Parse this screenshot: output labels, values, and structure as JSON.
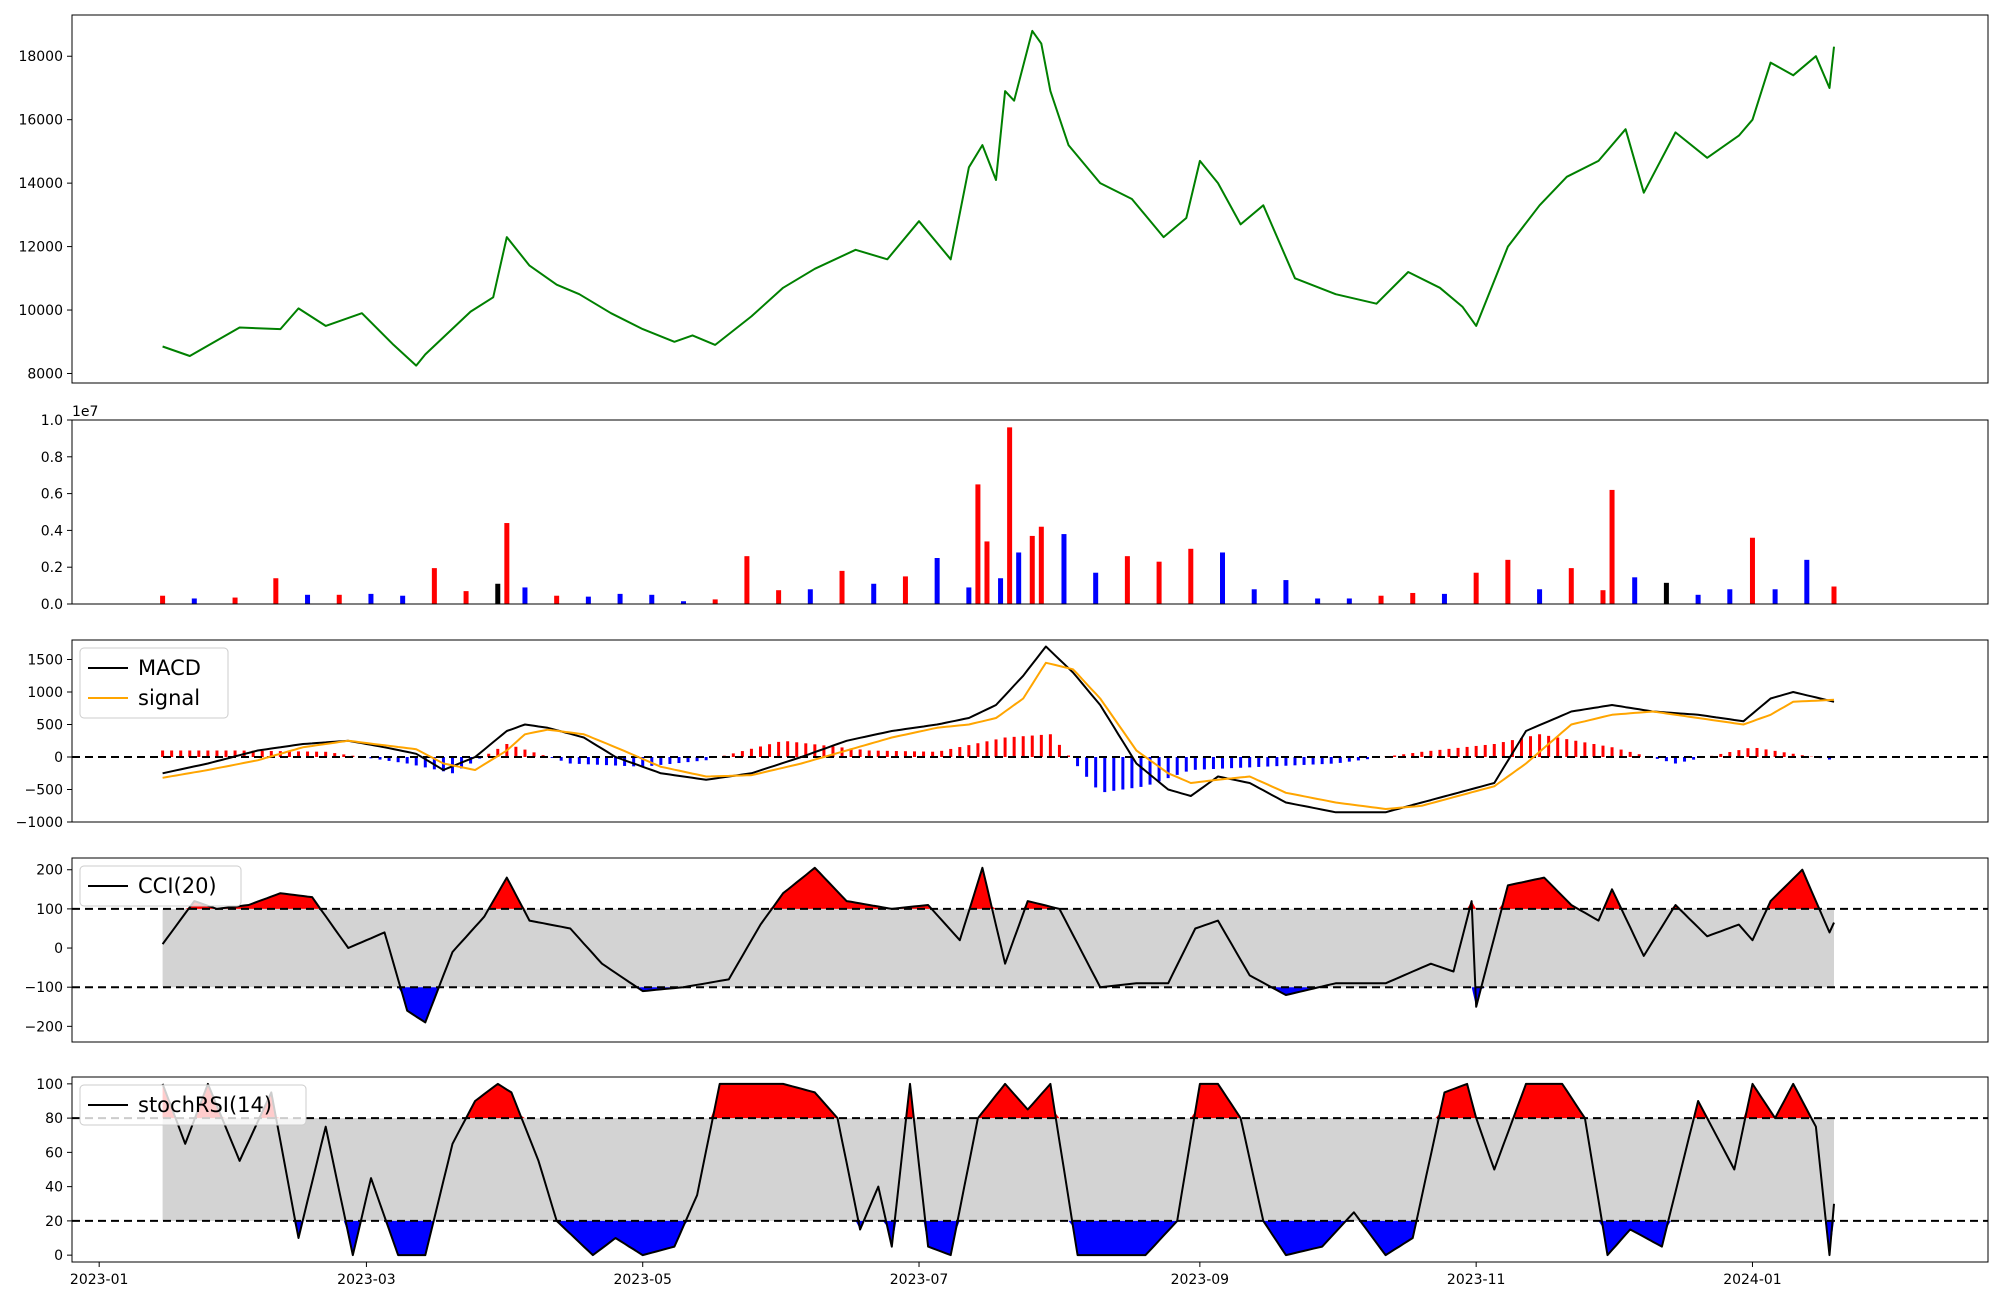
{
  "chart_data": [
    {
      "type": "line",
      "x": [
        "2023-01-15",
        "2023-01-21",
        "2023-02-01",
        "2023-02-10",
        "2023-02-14",
        "2023-02-20",
        "2023-02-28",
        "2023-03-07",
        "2023-03-12",
        "2023-03-14",
        "2023-03-24",
        "2023-03-29",
        "2023-04-01",
        "2023-04-06",
        "2023-04-12",
        "2023-04-17",
        "2023-04-24",
        "2023-05-01",
        "2023-05-08",
        "2023-05-12",
        "2023-05-17",
        "2023-05-25",
        "2023-06-01",
        "2023-06-08",
        "2023-06-17",
        "2023-06-24",
        "2023-07-01",
        "2023-07-08",
        "2023-07-12",
        "2023-07-15",
        "2023-07-18",
        "2023-07-20",
        "2023-07-22",
        "2023-07-26",
        "2023-07-28",
        "2023-07-30",
        "2023-08-03",
        "2023-08-10",
        "2023-08-17",
        "2023-08-24",
        "2023-08-29",
        "2023-09-01",
        "2023-09-05",
        "2023-09-10",
        "2023-09-15",
        "2023-09-22",
        "2023-10-01",
        "2023-10-10",
        "2023-10-17",
        "2023-10-24",
        "2023-10-29",
        "2023-11-01",
        "2023-11-08",
        "2023-11-15",
        "2023-11-21",
        "2023-11-28",
        "2023-12-04",
        "2023-12-08",
        "2023-12-15",
        "2023-12-22",
        "2023-12-29",
        "2024-01-01",
        "2024-01-05",
        "2024-01-10",
        "2024-01-15",
        "2024-01-18",
        "2024-01-19"
      ],
      "series": [
        {
          "values": [
            8850,
            8550,
            9450,
            9400,
            10050,
            9500,
            9900,
            8900,
            8250,
            8600,
            9950,
            10400,
            12300,
            11400,
            10800,
            10500,
            9900,
            9400,
            9000,
            9200,
            8900,
            9800,
            10700,
            11300,
            11900,
            11600,
            12800,
            11600,
            14500,
            15200,
            14100,
            16900,
            16600,
            18800,
            18400,
            16900,
            15200,
            14000,
            13500,
            12300,
            12900,
            14700,
            14000,
            12700,
            13300,
            11000,
            10500,
            10200,
            11200,
            10700,
            10100,
            9500,
            12000,
            13300,
            14200,
            14700,
            15700,
            13700,
            15600,
            14800,
            15500,
            16000,
            17800,
            17400,
            18000,
            17000,
            18300
          ]
        }
      ],
      "ylim": [
        7700,
        19300
      ],
      "yticks": [
        8000,
        10000,
        12000,
        14000,
        16000,
        18000
      ]
    },
    {
      "type": "bar",
      "x": [
        "2023-01-15",
        "2023-01-22",
        "2023-01-31",
        "2023-02-09",
        "2023-02-16",
        "2023-02-23",
        "2023-03-02",
        "2023-03-09",
        "2023-03-16",
        "2023-03-23",
        "2023-03-30",
        "2023-04-01",
        "2023-04-05",
        "2023-04-12",
        "2023-04-19",
        "2023-04-26",
        "2023-05-03",
        "2023-05-10",
        "2023-05-17",
        "2023-05-24",
        "2023-05-31",
        "2023-06-07",
        "2023-06-14",
        "2023-06-21",
        "2023-06-28",
        "2023-07-05",
        "2023-07-12",
        "2023-07-14",
        "2023-07-16",
        "2023-07-19",
        "2023-07-21",
        "2023-07-23",
        "2023-07-26",
        "2023-07-28",
        "2023-08-02",
        "2023-08-09",
        "2023-08-16",
        "2023-08-23",
        "2023-08-30",
        "2023-09-06",
        "2023-09-13",
        "2023-09-20",
        "2023-09-27",
        "2023-10-04",
        "2023-10-11",
        "2023-10-18",
        "2023-10-25",
        "2023-11-01",
        "2023-11-08",
        "2023-11-15",
        "2023-11-22",
        "2023-11-29",
        "2023-12-01",
        "2023-12-06",
        "2023-12-13",
        "2023-12-20",
        "2023-12-27",
        "2024-01-01",
        "2024-01-06",
        "2024-01-13",
        "2024-01-19"
      ],
      "values": [
        450000,
        300000,
        350000,
        1400000,
        500000,
        500000,
        550000,
        450000,
        1950000,
        700000,
        1100000,
        4400000,
        900000,
        450000,
        400000,
        550000,
        500000,
        150000,
        250000,
        2600000,
        750000,
        800000,
        1800000,
        1100000,
        1500000,
        2500000,
        900000,
        6500000,
        3400000,
        1400000,
        9600000,
        2800000,
        3700000,
        4200000,
        3800000,
        1700000,
        2600000,
        2300000,
        3000000,
        2800000,
        800000,
        1300000,
        300000,
        300000,
        450000,
        600000,
        550000,
        1700000,
        2400000,
        800000,
        1950000,
        750000,
        6200000,
        1450000,
        1150000,
        500000,
        800000,
        3600000,
        800000,
        2400000,
        950000
      ],
      "colors": [
        "#ff0000",
        "#0000ff",
        "#ff0000",
        "#ff0000",
        "#0000ff",
        "#ff0000",
        "#0000ff",
        "#0000ff",
        "#ff0000",
        "#ff0000",
        "#000000",
        "#ff0000",
        "#0000ff",
        "#ff0000",
        "#0000ff",
        "#0000ff",
        "#0000ff",
        "#0000ff",
        "#ff0000",
        "#ff0000",
        "#ff0000",
        "#0000ff",
        "#ff0000",
        "#0000ff",
        "#ff0000",
        "#0000ff",
        "#0000ff",
        "#ff0000",
        "#ff0000",
        "#0000ff",
        "#ff0000",
        "#0000ff",
        "#ff0000",
        "#ff0000",
        "#0000ff",
        "#0000ff",
        "#ff0000",
        "#ff0000",
        "#ff0000",
        "#0000ff",
        "#0000ff",
        "#0000ff",
        "#0000ff",
        "#0000ff",
        "#ff0000",
        "#ff0000",
        "#0000ff",
        "#ff0000",
        "#ff0000",
        "#0000ff",
        "#ff0000",
        "#ff0000",
        "#ff0000",
        "#0000ff",
        "#000000",
        "#0000ff",
        "#0000ff",
        "#ff0000",
        "#0000ff",
        "#0000ff",
        "#ff0000"
      ],
      "ylim": [
        0,
        10000000
      ],
      "yticks": [
        0,
        2000000,
        4000000,
        6000000,
        8000000,
        10000000
      ],
      "ytick_labels": [
        "0.0",
        "0.2",
        "0.4",
        "0.6",
        "0.8",
        "1.0"
      ],
      "offset_text": "1e7"
    },
    {
      "type": "line",
      "x": [
        "2023-01-15",
        "2023-01-25",
        "2023-02-05",
        "2023-02-15",
        "2023-02-25",
        "2023-03-05",
        "2023-03-12",
        "2023-03-18",
        "2023-03-25",
        "2023-04-01",
        "2023-04-05",
        "2023-04-10",
        "2023-04-18",
        "2023-04-25",
        "2023-05-05",
        "2023-05-15",
        "2023-05-25",
        "2023-06-05",
        "2023-06-15",
        "2023-06-25",
        "2023-07-05",
        "2023-07-12",
        "2023-07-18",
        "2023-07-24",
        "2023-07-29",
        "2023-08-04",
        "2023-08-10",
        "2023-08-18",
        "2023-08-25",
        "2023-08-30",
        "2023-09-05",
        "2023-09-12",
        "2023-09-20",
        "2023-10-01",
        "2023-10-12",
        "2023-10-20",
        "2023-10-28",
        "2023-11-05",
        "2023-11-12",
        "2023-11-22",
        "2023-12-01",
        "2023-12-10",
        "2023-12-20",
        "2023-12-30",
        "2024-01-05",
        "2024-01-10",
        "2024-01-19"
      ],
      "series": [
        {
          "name": "MACD",
          "values": [
            -250,
            -100,
            100,
            200,
            250,
            150,
            50,
            -200,
            0,
            400,
            500,
            450,
            300,
            0,
            -250,
            -350,
            -250,
            0,
            250,
            400,
            500,
            600,
            800,
            1250,
            1700,
            1300,
            800,
            -100,
            -500,
            -600,
            -300,
            -400,
            -700,
            -850,
            -850,
            -700,
            -550,
            -400,
            400,
            700,
            800,
            700,
            650,
            550,
            900,
            1000,
            850
          ]
        },
        {
          "name": "signal",
          "values": [
            -320,
            -200,
            -50,
            150,
            250,
            180,
            120,
            -100,
            -200,
            100,
            350,
            420,
            350,
            150,
            -150,
            -300,
            -280,
            -100,
            100,
            300,
            450,
            500,
            600,
            900,
            1450,
            1350,
            900,
            100,
            -250,
            -400,
            -350,
            -300,
            -550,
            -700,
            -800,
            -750,
            -600,
            -450,
            -100,
            500,
            650,
            700,
            600,
            500,
            650,
            850,
            880
          ]
        }
      ],
      "histogram": {
        "x": [
          "2023-01-15",
          "2023-02-01",
          "2023-02-20",
          "2023-03-10",
          "2023-03-20",
          "2023-04-01",
          "2023-04-15",
          "2023-05-01",
          "2023-05-15",
          "2023-06-01",
          "2023-06-20",
          "2023-07-05",
          "2023-07-20",
          "2023-07-30",
          "2023-08-10",
          "2023-08-20",
          "2023-08-30",
          "2023-09-15",
          "2023-10-01",
          "2023-10-20",
          "2023-11-05",
          "2023-11-15",
          "2023-12-01",
          "2023-12-15",
          "2024-01-01",
          "2024-01-19"
        ],
        "values": [
          100,
          100,
          80,
          -100,
          -250,
          200,
          -100,
          -150,
          -50,
          250,
          100,
          80,
          300,
          350,
          -550,
          -450,
          -200,
          -150,
          -100,
          80,
          200,
          350,
          150,
          -100,
          150,
          -50
        ]
      },
      "ylim": [
        -1000,
        1800
      ],
      "yticks": [
        -1000,
        -500,
        0,
        500,
        1000,
        1500
      ],
      "hlines": [
        0
      ],
      "legend": "top-left"
    },
    {
      "type": "line",
      "x": [
        "2023-01-15",
        "2023-01-22",
        "2023-01-27",
        "2023-02-03",
        "2023-02-10",
        "2023-02-17",
        "2023-02-25",
        "2023-03-05",
        "2023-03-10",
        "2023-03-14",
        "2023-03-20",
        "2023-03-27",
        "2023-04-01",
        "2023-04-06",
        "2023-04-15",
        "2023-04-22",
        "2023-05-01",
        "2023-05-10",
        "2023-05-20",
        "2023-05-27",
        "2023-06-01",
        "2023-06-08",
        "2023-06-15",
        "2023-06-25",
        "2023-07-03",
        "2023-07-10",
        "2023-07-15",
        "2023-07-20",
        "2023-07-25",
        "2023-08-01",
        "2023-08-10",
        "2023-08-18",
        "2023-08-25",
        "2023-08-31",
        "2023-09-05",
        "2023-09-12",
        "2023-09-20",
        "2023-10-01",
        "2023-10-12",
        "2023-10-22",
        "2023-10-27",
        "2023-10-31",
        "2023-11-01",
        "2023-11-08",
        "2023-11-16",
        "2023-11-22",
        "2023-11-28",
        "2023-12-01",
        "2023-12-08",
        "2023-12-15",
        "2023-12-22",
        "2023-12-29",
        "2024-01-01",
        "2024-01-05",
        "2024-01-12",
        "2024-01-18",
        "2024-01-19"
      ],
      "series": [
        {
          "name": "CCI(20)",
          "values": [
            10,
            120,
            100,
            110,
            140,
            130,
            0,
            40,
            -160,
            -190,
            -10,
            80,
            180,
            70,
            50,
            -40,
            -110,
            -100,
            -80,
            60,
            140,
            205,
            120,
            100,
            110,
            20,
            205,
            -40,
            120,
            100,
            -100,
            -90,
            -90,
            50,
            70,
            -70,
            -120,
            -90,
            -90,
            -40,
            -60,
            120,
            -150,
            160,
            180,
            110,
            70,
            150,
            -20,
            110,
            30,
            60,
            20,
            120,
            200,
            40,
            65
          ]
        }
      ],
      "ylim": [
        -240,
        230
      ],
      "yticks": [
        -200,
        -100,
        0,
        100,
        200
      ],
      "hlines": [
        -100,
        100
      ],
      "legend": "top-left"
    },
    {
      "type": "line",
      "x": [
        "2023-01-15",
        "2023-01-20",
        "2023-01-25",
        "2023-02-01",
        "2023-02-08",
        "2023-02-14",
        "2023-02-20",
        "2023-02-26",
        "2023-03-02",
        "2023-03-08",
        "2023-03-14",
        "2023-03-20",
        "2023-03-25",
        "2023-03-30",
        "2023-04-02",
        "2023-04-08",
        "2023-04-12",
        "2023-04-20",
        "2023-04-25",
        "2023-05-01",
        "2023-05-08",
        "2023-05-13",
        "2023-05-18",
        "2023-05-25",
        "2023-06-01",
        "2023-06-08",
        "2023-06-13",
        "2023-06-18",
        "2023-06-22",
        "2023-06-25",
        "2023-06-29",
        "2023-07-03",
        "2023-07-08",
        "2023-07-14",
        "2023-07-20",
        "2023-07-25",
        "2023-07-30",
        "2023-08-05",
        "2023-08-12",
        "2023-08-20",
        "2023-08-27",
        "2023-09-01",
        "2023-09-05",
        "2023-09-10",
        "2023-09-15",
        "2023-09-20",
        "2023-09-28",
        "2023-10-05",
        "2023-10-12",
        "2023-10-18",
        "2023-10-25",
        "2023-10-30",
        "2023-11-01",
        "2023-11-05",
        "2023-11-12",
        "2023-11-20",
        "2023-11-25",
        "2023-11-30",
        "2023-12-05",
        "2023-12-12",
        "2023-12-20",
        "2023-12-28",
        "2024-01-01",
        "2024-01-06",
        "2024-01-10",
        "2024-01-15",
        "2024-01-18",
        "2024-01-19"
      ],
      "series": [
        {
          "name": "stochRSI(14)",
          "values": [
            100,
            65,
            100,
            55,
            95,
            10,
            75,
            0,
            45,
            0,
            0,
            65,
            90,
            100,
            95,
            55,
            20,
            0,
            10,
            0,
            5,
            35,
            100,
            100,
            100,
            95,
            80,
            15,
            40,
            5,
            100,
            5,
            0,
            80,
            100,
            85,
            100,
            0,
            0,
            0,
            20,
            100,
            100,
            80,
            20,
            0,
            5,
            25,
            0,
            10,
            95,
            100,
            80,
            50,
            100,
            100,
            80,
            0,
            15,
            5,
            90,
            50,
            100,
            80,
            100,
            75,
            0,
            30
          ]
        }
      ],
      "ylim": [
        -4,
        104
      ],
      "yticks": [
        0,
        20,
        40,
        60,
        80,
        100
      ],
      "hlines": [
        20,
        80
      ],
      "xticks": [
        "2023-01",
        "2023-03",
        "2023-05",
        "2023-07",
        "2023-09",
        "2023-11",
        "2024-01"
      ],
      "legend": "top-left"
    }
  ]
}
